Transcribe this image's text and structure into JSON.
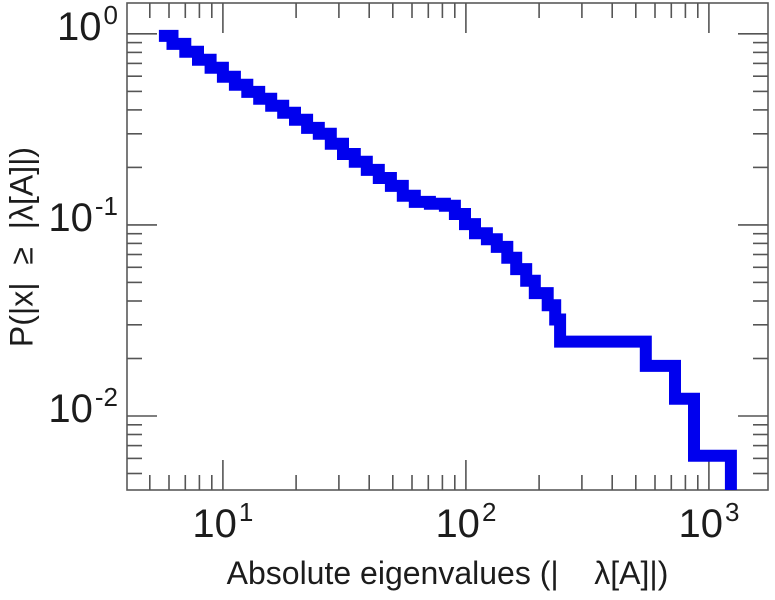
{
  "chart_data": {
    "type": "line",
    "subtype": "empirical-ccdf-step",
    "title": "",
    "xlabel": "Absolute eigenvalues (|    λ[A]|)",
    "ylabel": "P(|x|  ≥  |λ[A]|)",
    "x_scale": "log",
    "y_scale": "log",
    "xlim": [
      4.03,
      1750
    ],
    "ylim": [
      0.0041,
      1.45
    ],
    "x_major_ticks": [
      10,
      100,
      1000
    ],
    "y_major_ticks": [
      1,
      0.1,
      0.01
    ],
    "x_tick_labels": [
      {
        "value": 10,
        "base": "10",
        "exp": "1"
      },
      {
        "value": 100,
        "base": "10",
        "exp": "2"
      },
      {
        "value": 1000,
        "base": "10",
        "exp": "3"
      }
    ],
    "y_tick_labels": [
      {
        "value": 1,
        "base": "10",
        "exp": "0"
      },
      {
        "value": 0.1,
        "base": "10",
        "exp": "-1"
      },
      {
        "value": 0.01,
        "base": "10",
        "exp": "-2"
      }
    ],
    "x_minor_ticks": [
      5,
      6,
      7,
      8,
      9,
      20,
      30,
      40,
      50,
      60,
      70,
      80,
      90,
      200,
      300,
      400,
      500,
      600,
      700,
      800,
      900
    ],
    "y_minor_ticks": [
      0.9,
      0.8,
      0.7,
      0.6,
      0.5,
      0.4,
      0.3,
      0.2,
      0.09,
      0.08,
      0.07,
      0.06,
      0.05,
      0.04,
      0.03,
      0.02,
      0.009,
      0.008,
      0.007,
      0.006,
      0.005
    ],
    "grid": false,
    "legend": false,
    "frame_color": "#5a5a5a",
    "tick_color": "#555555",
    "text_color": "#1c1c1c",
    "line_color": "#0000ee",
    "line_width": 12,
    "step_mode": "post",
    "points": [
      [
        5.45,
        0.976
      ],
      [
        6.2,
        0.886
      ],
      [
        7.0,
        0.805
      ],
      [
        7.9,
        0.731
      ],
      [
        8.9,
        0.664
      ],
      [
        10.0,
        0.596
      ],
      [
        11.2,
        0.541
      ],
      [
        12.6,
        0.497
      ],
      [
        14.1,
        0.457
      ],
      [
        15.8,
        0.42
      ],
      [
        17.7,
        0.386
      ],
      [
        19.8,
        0.355
      ],
      [
        22.2,
        0.322
      ],
      [
        24.8,
        0.3
      ],
      [
        27.8,
        0.266
      ],
      [
        31.2,
        0.235
      ],
      [
        34.9,
        0.214
      ],
      [
        39.1,
        0.194
      ],
      [
        43.8,
        0.176
      ],
      [
        49.1,
        0.16
      ],
      [
        55.0,
        0.142
      ],
      [
        61.6,
        0.132
      ],
      [
        71.1,
        0.129
      ],
      [
        81.9,
        0.126
      ],
      [
        90.1,
        0.114
      ],
      [
        99.1,
        0.101
      ],
      [
        109,
        0.0905
      ],
      [
        122,
        0.0841
      ],
      [
        134,
        0.0767
      ],
      [
        148,
        0.0674
      ],
      [
        161,
        0.0587
      ],
      [
        177,
        0.051
      ],
      [
        192,
        0.044
      ],
      [
        217,
        0.038
      ],
      [
        233,
        0.032
      ],
      [
        244,
        0.0245
      ],
      [
        550,
        0.0245
      ],
      [
        550,
        0.0183
      ],
      [
        725,
        0.0183
      ],
      [
        725,
        0.0123
      ],
      [
        868,
        0.0123
      ],
      [
        868,
        0.0062
      ],
      [
        1231,
        0.0062
      ],
      [
        1231,
        0.0041
      ]
    ]
  }
}
